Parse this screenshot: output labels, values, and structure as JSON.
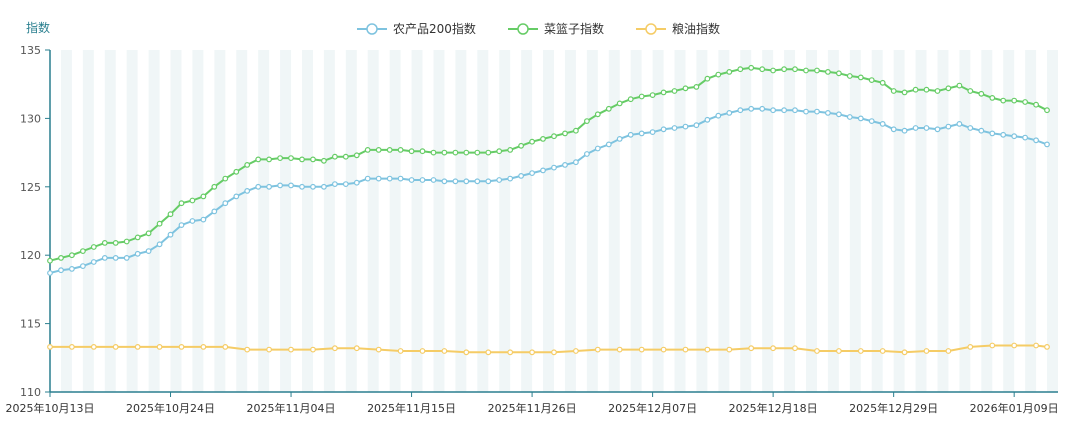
{
  "chart_data": {
    "type": "line",
    "ylabel": "指数",
    "ylim": [
      110,
      135
    ],
    "yticks": [
      "110",
      "115",
      "120",
      "125",
      "130",
      "135"
    ],
    "xtick_labels": [
      "2025年10月13日",
      "2025年10月24日",
      "2025年11月04日",
      "2025年11月15日",
      "2025年11月26日",
      "2025年12月07日",
      "2025年12月18日",
      "2025年12月29日",
      "2026年01月09日"
    ],
    "x_start": "2025-10-13",
    "x_end": "2026-01-13",
    "legend_position": "top-center",
    "grid": "alternating vertical bands",
    "colors": {
      "axis": "#2a7f8f",
      "band": "#f0f6f7",
      "series": [
        "#7ec3df",
        "#66cc66",
        "#f5cc66"
      ]
    },
    "series": [
      {
        "name": "农产品200指数",
        "color": "#7ec3df",
        "points": [
          [
            "2025-10-13",
            118.7
          ],
          [
            "2025-10-14",
            118.9
          ],
          [
            "2025-10-15",
            119.0
          ],
          [
            "2025-10-16",
            119.2
          ],
          [
            "2025-10-17",
            119.5
          ],
          [
            "2025-10-18",
            119.8
          ],
          [
            "2025-10-19",
            119.8
          ],
          [
            "2025-10-20",
            119.8
          ],
          [
            "2025-10-21",
            120.1
          ],
          [
            "2025-10-22",
            120.3
          ],
          [
            "2025-10-23",
            120.8
          ],
          [
            "2025-10-24",
            121.5
          ],
          [
            "2025-10-25",
            122.2
          ],
          [
            "2025-10-26",
            122.5
          ],
          [
            "2025-10-27",
            122.6
          ],
          [
            "2025-10-28",
            123.2
          ],
          [
            "2025-10-29",
            123.8
          ],
          [
            "2025-10-30",
            124.3
          ],
          [
            "2025-10-31",
            124.7
          ],
          [
            "2025-11-01",
            125.0
          ],
          [
            "2025-11-02",
            125.0
          ],
          [
            "2025-11-03",
            125.1
          ],
          [
            "2025-11-04",
            125.1
          ],
          [
            "2025-11-05",
            125.0
          ],
          [
            "2025-11-06",
            125.0
          ],
          [
            "2025-11-07",
            125.0
          ],
          [
            "2025-11-08",
            125.2
          ],
          [
            "2025-11-09",
            125.2
          ],
          [
            "2025-11-10",
            125.3
          ],
          [
            "2025-11-11",
            125.6
          ],
          [
            "2025-11-12",
            125.6
          ],
          [
            "2025-11-13",
            125.6
          ],
          [
            "2025-11-14",
            125.6
          ],
          [
            "2025-11-15",
            125.5
          ],
          [
            "2025-11-16",
            125.5
          ],
          [
            "2025-11-17",
            125.5
          ],
          [
            "2025-11-18",
            125.4
          ],
          [
            "2025-11-19",
            125.4
          ],
          [
            "2025-11-20",
            125.4
          ],
          [
            "2025-11-21",
            125.4
          ],
          [
            "2025-11-22",
            125.4
          ],
          [
            "2025-11-23",
            125.5
          ],
          [
            "2025-11-24",
            125.6
          ],
          [
            "2025-11-25",
            125.8
          ],
          [
            "2025-11-26",
            126.0
          ],
          [
            "2025-11-27",
            126.2
          ],
          [
            "2025-11-28",
            126.4
          ],
          [
            "2025-11-29",
            126.6
          ],
          [
            "2025-11-30",
            126.8
          ],
          [
            "2025-12-01",
            127.4
          ],
          [
            "2025-12-02",
            127.8
          ],
          [
            "2025-12-03",
            128.1
          ],
          [
            "2025-12-04",
            128.5
          ],
          [
            "2025-12-05",
            128.8
          ],
          [
            "2025-12-06",
            128.9
          ],
          [
            "2025-12-07",
            129.0
          ],
          [
            "2025-12-08",
            129.2
          ],
          [
            "2025-12-09",
            129.3
          ],
          [
            "2025-12-10",
            129.4
          ],
          [
            "2025-12-11",
            129.5
          ],
          [
            "2025-12-12",
            129.9
          ],
          [
            "2025-12-13",
            130.2
          ],
          [
            "2025-12-14",
            130.4
          ],
          [
            "2025-12-15",
            130.6
          ],
          [
            "2025-12-16",
            130.7
          ],
          [
            "2025-12-17",
            130.7
          ],
          [
            "2025-12-18",
            130.6
          ],
          [
            "2025-12-19",
            130.6
          ],
          [
            "2025-12-20",
            130.6
          ],
          [
            "2025-12-21",
            130.5
          ],
          [
            "2025-12-22",
            130.5
          ],
          [
            "2025-12-23",
            130.4
          ],
          [
            "2025-12-24",
            130.3
          ],
          [
            "2025-12-25",
            130.1
          ],
          [
            "2025-12-26",
            130.0
          ],
          [
            "2025-12-27",
            129.8
          ],
          [
            "2025-12-28",
            129.6
          ],
          [
            "2025-12-29",
            129.2
          ],
          [
            "2025-12-30",
            129.1
          ],
          [
            "2025-12-31",
            129.3
          ],
          [
            "2026-01-01",
            129.3
          ],
          [
            "2026-01-02",
            129.2
          ],
          [
            "2026-01-03",
            129.4
          ],
          [
            "2026-01-04",
            129.6
          ],
          [
            "2026-01-05",
            129.3
          ],
          [
            "2026-01-06",
            129.1
          ],
          [
            "2026-01-07",
            128.9
          ],
          [
            "2026-01-08",
            128.8
          ],
          [
            "2026-01-09",
            128.7
          ],
          [
            "2026-01-10",
            128.6
          ],
          [
            "2026-01-11",
            128.4
          ],
          [
            "2026-01-12",
            128.1
          ]
        ]
      },
      {
        "name": "菜篮子指数",
        "color": "#66cc66",
        "points": [
          [
            "2025-10-13",
            119.6
          ],
          [
            "2025-10-14",
            119.8
          ],
          [
            "2025-10-15",
            120.0
          ],
          [
            "2025-10-16",
            120.3
          ],
          [
            "2025-10-17",
            120.6
          ],
          [
            "2025-10-18",
            120.9
          ],
          [
            "2025-10-19",
            120.9
          ],
          [
            "2025-10-20",
            121.0
          ],
          [
            "2025-10-21",
            121.3
          ],
          [
            "2025-10-22",
            121.6
          ],
          [
            "2025-10-23",
            122.3
          ],
          [
            "2025-10-24",
            123.0
          ],
          [
            "2025-10-25",
            123.8
          ],
          [
            "2025-10-26",
            124.0
          ],
          [
            "2025-10-27",
            124.3
          ],
          [
            "2025-10-28",
            125.0
          ],
          [
            "2025-10-29",
            125.6
          ],
          [
            "2025-10-30",
            126.1
          ],
          [
            "2025-10-31",
            126.6
          ],
          [
            "2025-11-01",
            127.0
          ],
          [
            "2025-11-02",
            127.0
          ],
          [
            "2025-11-03",
            127.1
          ],
          [
            "2025-11-04",
            127.1
          ],
          [
            "2025-11-05",
            127.0
          ],
          [
            "2025-11-06",
            127.0
          ],
          [
            "2025-11-07",
            126.9
          ],
          [
            "2025-11-08",
            127.2
          ],
          [
            "2025-11-09",
            127.2
          ],
          [
            "2025-11-10",
            127.3
          ],
          [
            "2025-11-11",
            127.7
          ],
          [
            "2025-11-12",
            127.7
          ],
          [
            "2025-11-13",
            127.7
          ],
          [
            "2025-11-14",
            127.7
          ],
          [
            "2025-11-15",
            127.6
          ],
          [
            "2025-11-16",
            127.6
          ],
          [
            "2025-11-17",
            127.5
          ],
          [
            "2025-11-18",
            127.5
          ],
          [
            "2025-11-19",
            127.5
          ],
          [
            "2025-11-20",
            127.5
          ],
          [
            "2025-11-21",
            127.5
          ],
          [
            "2025-11-22",
            127.5
          ],
          [
            "2025-11-23",
            127.6
          ],
          [
            "2025-11-24",
            127.7
          ],
          [
            "2025-11-25",
            128.0
          ],
          [
            "2025-11-26",
            128.3
          ],
          [
            "2025-11-27",
            128.5
          ],
          [
            "2025-11-28",
            128.7
          ],
          [
            "2025-11-29",
            128.9
          ],
          [
            "2025-11-30",
            129.1
          ],
          [
            "2025-12-01",
            129.8
          ],
          [
            "2025-12-02",
            130.3
          ],
          [
            "2025-12-03",
            130.7
          ],
          [
            "2025-12-04",
            131.1
          ],
          [
            "2025-12-05",
            131.4
          ],
          [
            "2025-12-06",
            131.6
          ],
          [
            "2025-12-07",
            131.7
          ],
          [
            "2025-12-08",
            131.9
          ],
          [
            "2025-12-09",
            132.0
          ],
          [
            "2025-12-10",
            132.2
          ],
          [
            "2025-12-11",
            132.3
          ],
          [
            "2025-12-12",
            132.9
          ],
          [
            "2025-12-13",
            133.2
          ],
          [
            "2025-12-14",
            133.4
          ],
          [
            "2025-12-15",
            133.6
          ],
          [
            "2025-12-16",
            133.7
          ],
          [
            "2025-12-17",
            133.6
          ],
          [
            "2025-12-18",
            133.5
          ],
          [
            "2025-12-19",
            133.6
          ],
          [
            "2025-12-20",
            133.6
          ],
          [
            "2025-12-21",
            133.5
          ],
          [
            "2025-12-22",
            133.5
          ],
          [
            "2025-12-23",
            133.4
          ],
          [
            "2025-12-24",
            133.3
          ],
          [
            "2025-12-25",
            133.1
          ],
          [
            "2025-12-26",
            133.0
          ],
          [
            "2025-12-27",
            132.8
          ],
          [
            "2025-12-28",
            132.6
          ],
          [
            "2025-12-29",
            132.0
          ],
          [
            "2025-12-30",
            131.9
          ],
          [
            "2025-12-31",
            132.1
          ],
          [
            "2026-01-01",
            132.1
          ],
          [
            "2026-01-02",
            132.0
          ],
          [
            "2026-01-03",
            132.2
          ],
          [
            "2026-01-04",
            132.4
          ],
          [
            "2026-01-05",
            132.0
          ],
          [
            "2026-01-06",
            131.8
          ],
          [
            "2026-01-07",
            131.5
          ],
          [
            "2026-01-08",
            131.3
          ],
          [
            "2026-01-09",
            131.3
          ],
          [
            "2026-01-10",
            131.2
          ],
          [
            "2026-01-11",
            131.0
          ],
          [
            "2026-01-12",
            130.6
          ]
        ]
      },
      {
        "name": "粮油指数",
        "color": "#f5cc66",
        "points": [
          [
            "2025-10-13",
            113.3
          ],
          [
            "2025-10-15",
            113.3
          ],
          [
            "2025-10-17",
            113.3
          ],
          [
            "2025-10-19",
            113.3
          ],
          [
            "2025-10-21",
            113.3
          ],
          [
            "2025-10-23",
            113.3
          ],
          [
            "2025-10-25",
            113.3
          ],
          [
            "2025-10-27",
            113.3
          ],
          [
            "2025-10-29",
            113.3
          ],
          [
            "2025-10-31",
            113.1
          ],
          [
            "2025-11-02",
            113.1
          ],
          [
            "2025-11-04",
            113.1
          ],
          [
            "2025-11-06",
            113.1
          ],
          [
            "2025-11-08",
            113.2
          ],
          [
            "2025-11-10",
            113.2
          ],
          [
            "2025-11-12",
            113.1
          ],
          [
            "2025-11-14",
            113.0
          ],
          [
            "2025-11-16",
            113.0
          ],
          [
            "2025-11-18",
            113.0
          ],
          [
            "2025-11-20",
            112.9
          ],
          [
            "2025-11-22",
            112.9
          ],
          [
            "2025-11-24",
            112.9
          ],
          [
            "2025-11-26",
            112.9
          ],
          [
            "2025-11-28",
            112.9
          ],
          [
            "2025-11-30",
            113.0
          ],
          [
            "2025-12-02",
            113.1
          ],
          [
            "2025-12-04",
            113.1
          ],
          [
            "2025-12-06",
            113.1
          ],
          [
            "2025-12-08",
            113.1
          ],
          [
            "2025-12-10",
            113.1
          ],
          [
            "2025-12-12",
            113.1
          ],
          [
            "2025-12-14",
            113.1
          ],
          [
            "2025-12-16",
            113.2
          ],
          [
            "2025-12-18",
            113.2
          ],
          [
            "2025-12-20",
            113.2
          ],
          [
            "2025-12-22",
            113.0
          ],
          [
            "2025-12-24",
            113.0
          ],
          [
            "2025-12-26",
            113.0
          ],
          [
            "2025-12-28",
            113.0
          ],
          [
            "2025-12-30",
            112.9
          ],
          [
            "2026-01-01",
            113.0
          ],
          [
            "2026-01-03",
            113.0
          ],
          [
            "2026-01-05",
            113.3
          ],
          [
            "2026-01-07",
            113.4
          ],
          [
            "2026-01-09",
            113.4
          ],
          [
            "2026-01-11",
            113.4
          ],
          [
            "2026-01-12",
            113.3
          ]
        ]
      }
    ]
  }
}
